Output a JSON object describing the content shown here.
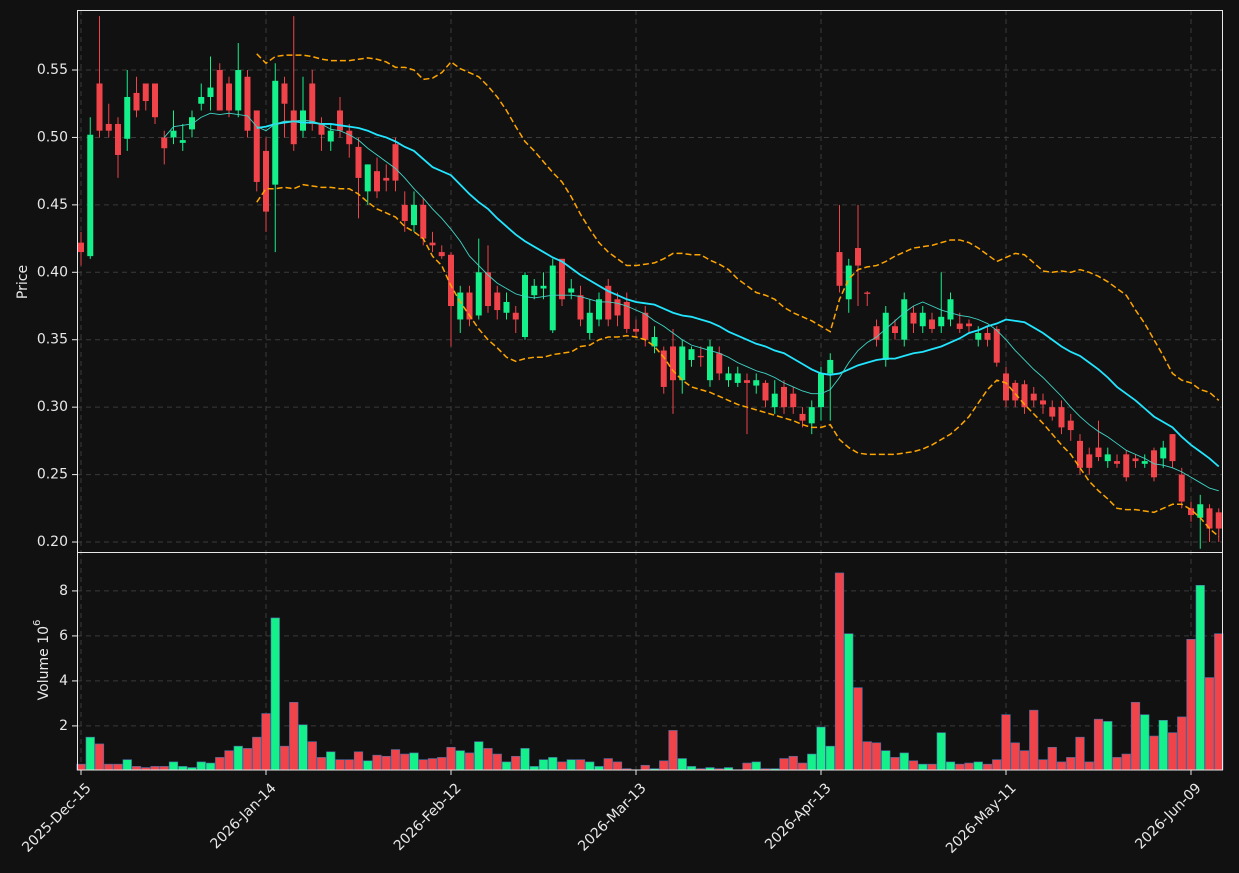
{
  "chart_data": {
    "type": "candlestick",
    "ylabel": "Price",
    "volume_ylabel": "Volume",
    "volume_scale_base": "10",
    "volume_scale_exponent": "6",
    "up_color": "#14f08a",
    "down_color": "#f0434a",
    "grid": true,
    "categories": [
      "2025-Dec-15",
      null,
      null,
      null,
      null,
      null,
      null,
      null,
      null,
      null,
      null,
      null,
      null,
      null,
      null,
      null,
      null,
      null,
      null,
      null,
      "2026-Jan-14",
      null,
      null,
      null,
      null,
      null,
      null,
      null,
      null,
      null,
      null,
      null,
      null,
      null,
      null,
      null,
      null,
      null,
      null,
      null,
      "2026-Feb-12",
      null,
      null,
      null,
      null,
      null,
      null,
      null,
      null,
      null,
      null,
      null,
      null,
      null,
      null,
      null,
      null,
      null,
      null,
      null,
      "2026-Mar-13",
      null,
      null,
      null,
      null,
      null,
      null,
      null,
      null,
      null,
      null,
      null,
      null,
      null,
      null,
      null,
      null,
      null,
      null,
      null,
      "2026-Apr-13",
      null,
      null,
      null,
      null,
      null,
      null,
      null,
      null,
      null,
      null,
      null,
      null,
      null,
      null,
      null,
      null,
      null,
      null,
      null,
      "2026-May-11",
      null,
      null,
      null,
      null,
      null,
      null,
      null,
      null,
      null,
      null,
      null,
      null,
      null,
      null,
      null,
      null,
      null,
      null,
      null,
      "2026-Jun-09",
      null,
      null,
      null
    ],
    "open": [
      0.422,
      0.412,
      0.54,
      0.51,
      0.51,
      0.499,
      0.533,
      0.54,
      0.54,
      0.5,
      0.5,
      0.496,
      0.506,
      0.525,
      0.53,
      0.55,
      0.54,
      0.52,
      0.545,
      0.52,
      0.49,
      0.465,
      0.54,
      0.52,
      0.505,
      0.54,
      0.51,
      0.497,
      0.52,
      0.505,
      0.493,
      0.46,
      0.475,
      0.47,
      0.495,
      0.45,
      0.435,
      0.45,
      0.422,
      0.415,
      0.413,
      0.365,
      0.385,
      0.368,
      0.4,
      0.385,
      0.37,
      0.37,
      0.352,
      0.383,
      0.388,
      0.357,
      0.41,
      0.385,
      0.383,
      0.355,
      0.365,
      0.39,
      0.38,
      0.378,
      0.358,
      0.37,
      0.345,
      0.342,
      0.345,
      0.32,
      0.335,
      0.338,
      0.32,
      0.34,
      0.32,
      0.318,
      0.32,
      0.316,
      0.318,
      0.3,
      0.315,
      0.31,
      0.295,
      0.288,
      0.3,
      0.325,
      0.415,
      0.38,
      0.418,
      0.385,
      0.36,
      0.335,
      0.36,
      0.35,
      0.37,
      0.36,
      0.365,
      0.36,
      0.365,
      0.362,
      0.362,
      0.35,
      0.355,
      0.358,
      0.325,
      0.318,
      0.317,
      0.31,
      0.305,
      0.3,
      0.3,
      0.29,
      0.275,
      0.265,
      0.27,
      0.26,
      0.26,
      0.265,
      0.262,
      0.258,
      0.268,
      0.262,
      0.28,
      0.25,
      0.225,
      0.218,
      0.225,
      0.222
    ],
    "high": [
      0.43,
      0.515,
      0.59,
      0.525,
      0.515,
      0.55,
      0.545,
      0.54,
      0.54,
      0.505,
      0.52,
      0.51,
      0.52,
      0.54,
      0.56,
      0.555,
      0.545,
      0.57,
      0.55,
      0.52,
      0.5,
      0.555,
      0.545,
      0.59,
      0.545,
      0.55,
      0.515,
      0.51,
      0.53,
      0.51,
      0.5,
      0.48,
      0.485,
      0.48,
      0.5,
      0.46,
      0.46,
      0.455,
      0.43,
      0.42,
      0.415,
      0.39,
      0.39,
      0.425,
      0.42,
      0.39,
      0.385,
      0.375,
      0.4,
      0.395,
      0.4,
      0.41,
      0.41,
      0.395,
      0.39,
      0.38,
      0.385,
      0.395,
      0.385,
      0.385,
      0.365,
      0.375,
      0.36,
      0.345,
      0.358,
      0.35,
      0.345,
      0.345,
      0.35,
      0.345,
      0.33,
      0.33,
      0.325,
      0.325,
      0.32,
      0.32,
      0.32,
      0.315,
      0.3,
      0.305,
      0.33,
      0.34,
      0.45,
      0.41,
      0.45,
      0.386,
      0.365,
      0.375,
      0.365,
      0.385,
      0.375,
      0.375,
      0.37,
      0.4,
      0.385,
      0.37,
      0.365,
      0.36,
      0.36,
      0.36,
      0.33,
      0.32,
      0.32,
      0.315,
      0.31,
      0.305,
      0.305,
      0.295,
      0.28,
      0.27,
      0.29,
      0.27,
      0.265,
      0.268,
      0.265,
      0.265,
      0.27,
      0.275,
      0.28,
      0.255,
      0.23,
      0.235,
      0.228,
      0.225
    ],
    "low": [
      0.405,
      0.41,
      0.5,
      0.5,
      0.47,
      0.49,
      0.515,
      0.52,
      0.51,
      0.48,
      0.495,
      0.49,
      0.5,
      0.52,
      0.52,
      0.52,
      0.515,
      0.515,
      0.5,
      0.46,
      0.43,
      0.415,
      0.5,
      0.49,
      0.5,
      0.505,
      0.49,
      0.49,
      0.5,
      0.485,
      0.44,
      0.45,
      0.455,
      0.46,
      0.46,
      0.43,
      0.43,
      0.42,
      0.415,
      0.41,
      0.345,
      0.355,
      0.36,
      0.365,
      0.37,
      0.365,
      0.365,
      0.355,
      0.35,
      0.38,
      0.38,
      0.355,
      0.375,
      0.38,
      0.36,
      0.35,
      0.36,
      0.36,
      0.36,
      0.355,
      0.352,
      0.345,
      0.34,
      0.31,
      0.295,
      0.31,
      0.33,
      0.33,
      0.315,
      0.32,
      0.315,
      0.315,
      0.28,
      0.31,
      0.3,
      0.295,
      0.295,
      0.295,
      0.285,
      0.28,
      0.29,
      0.29,
      0.385,
      0.37,
      0.375,
      0.375,
      0.345,
      0.33,
      0.35,
      0.345,
      0.355,
      0.355,
      0.355,
      0.355,
      0.36,
      0.355,
      0.355,
      0.345,
      0.345,
      0.33,
      0.3,
      0.3,
      0.295,
      0.3,
      0.295,
      0.29,
      0.28,
      0.275,
      0.25,
      0.25,
      0.26,
      0.255,
      0.255,
      0.245,
      0.255,
      0.255,
      0.245,
      0.255,
      0.255,
      0.225,
      0.215,
      0.195,
      0.2,
      0.2
    ],
    "close": [
      0.415,
      0.502,
      0.505,
      0.505,
      0.487,
      0.53,
      0.52,
      0.527,
      0.515,
      0.492,
      0.505,
      0.498,
      0.515,
      0.53,
      0.537,
      0.52,
      0.52,
      0.55,
      0.505,
      0.467,
      0.445,
      0.542,
      0.525,
      0.495,
      0.52,
      0.51,
      0.502,
      0.505,
      0.505,
      0.495,
      0.47,
      0.48,
      0.46,
      0.468,
      0.468,
      0.438,
      0.45,
      0.425,
      0.42,
      0.412,
      0.375,
      0.385,
      0.365,
      0.4,
      0.375,
      0.372,
      0.378,
      0.365,
      0.398,
      0.39,
      0.39,
      0.405,
      0.38,
      0.388,
      0.365,
      0.37,
      0.38,
      0.365,
      0.368,
      0.358,
      0.356,
      0.35,
      0.352,
      0.315,
      0.32,
      0.345,
      0.343,
      0.337,
      0.345,
      0.325,
      0.325,
      0.325,
      0.318,
      0.32,
      0.305,
      0.31,
      0.3,
      0.3,
      0.29,
      0.3,
      0.325,
      0.335,
      0.39,
      0.405,
      0.405,
      0.384,
      0.35,
      0.37,
      0.355,
      0.38,
      0.362,
      0.37,
      0.358,
      0.367,
      0.38,
      0.358,
      0.36,
      0.355,
      0.35,
      0.333,
      0.305,
      0.305,
      0.3,
      0.305,
      0.302,
      0.293,
      0.285,
      0.283,
      0.255,
      0.255,
      0.263,
      0.265,
      0.258,
      0.248,
      0.26,
      0.26,
      0.248,
      0.27,
      0.26,
      0.23,
      0.22,
      0.228,
      0.21,
      0.21
    ],
    "volume": [
      0.3,
      1.5,
      1.2,
      0.3,
      0.3,
      0.5,
      0.2,
      0.15,
      0.2,
      0.2,
      0.4,
      0.2,
      0.15,
      0.4,
      0.35,
      0.6,
      0.9,
      1.1,
      1.0,
      1.5,
      2.55,
      6.8,
      1.1,
      3.05,
      2.05,
      1.3,
      0.6,
      0.85,
      0.5,
      0.5,
      0.85,
      0.45,
      0.7,
      0.65,
      0.95,
      0.75,
      0.8,
      0.5,
      0.55,
      0.6,
      1.05,
      0.9,
      0.8,
      1.3,
      1.0,
      0.75,
      0.4,
      0.65,
      1.0,
      0.2,
      0.5,
      0.6,
      0.4,
      0.5,
      0.5,
      0.4,
      0.2,
      0.55,
      0.4,
      0.1,
      0.05,
      0.25,
      0.1,
      0.45,
      1.8,
      0.55,
      0.2,
      0.1,
      0.15,
      0.1,
      0.15,
      0.05,
      0.35,
      0.4,
      0.1,
      0.1,
      0.55,
      0.65,
      0.35,
      0.75,
      1.95,
      1.1,
      8.8,
      6.1,
      3.7,
      1.3,
      1.25,
      0.9,
      0.6,
      0.8,
      0.45,
      0.3,
      0.3,
      1.7,
      0.4,
      0.3,
      0.35,
      0.4,
      0.3,
      0.5,
      2.5,
      1.25,
      0.9,
      2.7,
      0.5,
      1.05,
      0.4,
      0.6,
      1.5,
      0.4,
      2.3,
      2.2,
      0.6,
      0.75,
      3.05,
      2.5,
      1.55,
      2.25,
      1.7,
      2.4,
      5.85,
      8.25,
      4.15,
      6.1
    ],
    "overlays": [
      {
        "color": "#22e5ff",
        "linestyle": "solid",
        "values": [
          null,
          null,
          null,
          null,
          null,
          null,
          null,
          null,
          null,
          null,
          null,
          null,
          null,
          null,
          null,
          null,
          null,
          null,
          null,
          0.507,
          0.508,
          0.51,
          0.511,
          0.512,
          0.511,
          0.511,
          0.51,
          0.51,
          0.509,
          0.508,
          0.507,
          0.505,
          0.502,
          0.5,
          0.497,
          0.493,
          0.49,
          0.484,
          0.478,
          0.475,
          0.472,
          0.465,
          0.458,
          0.452,
          0.447,
          0.44,
          0.434,
          0.428,
          0.423,
          0.419,
          0.415,
          0.411,
          0.408,
          0.403,
          0.398,
          0.394,
          0.39,
          0.386,
          0.383,
          0.38,
          0.378,
          0.377,
          0.376,
          0.373,
          0.37,
          0.368,
          0.367,
          0.365,
          0.363,
          0.36,
          0.356,
          0.353,
          0.35,
          0.347,
          0.345,
          0.342,
          0.34,
          0.336,
          0.332,
          0.328,
          0.325,
          0.324,
          0.325,
          0.328,
          0.331,
          0.333,
          0.335,
          0.336,
          0.336,
          0.338,
          0.34,
          0.341,
          0.343,
          0.345,
          0.348,
          0.351,
          0.355,
          0.357,
          0.36,
          0.362,
          0.365,
          0.364,
          0.363,
          0.359,
          0.355,
          0.35,
          0.345,
          0.341,
          0.338,
          0.333,
          0.328,
          0.322,
          0.315,
          0.31,
          0.305,
          0.299,
          0.293,
          0.289,
          0.285,
          0.278,
          0.272,
          0.267,
          0.262,
          0.256
        ]
      },
      {
        "color": "#3fd6c6",
        "linestyle": "solid",
        "values": [
          null,
          null,
          null,
          null,
          null,
          null,
          null,
          null,
          null,
          0.5,
          0.508,
          0.509,
          0.51,
          0.515,
          0.518,
          0.517,
          0.518,
          0.517,
          0.516,
          0.508,
          0.505,
          0.51,
          0.512,
          0.512,
          0.513,
          0.512,
          0.51,
          0.506,
          0.505,
          0.502,
          0.498,
          0.492,
          0.487,
          0.482,
          0.477,
          0.47,
          0.462,
          0.455,
          0.447,
          0.44,
          0.432,
          0.423,
          0.412,
          0.405,
          0.398,
          0.392,
          0.388,
          0.384,
          0.382,
          0.381,
          0.382,
          0.383,
          0.383,
          0.383,
          0.382,
          0.38,
          0.378,
          0.378,
          0.377,
          0.375,
          0.372,
          0.369,
          0.364,
          0.36,
          0.355,
          0.35,
          0.346,
          0.344,
          0.342,
          0.34,
          0.337,
          0.333,
          0.33,
          0.327,
          0.325,
          0.322,
          0.318,
          0.315,
          0.312,
          0.31,
          0.31,
          0.313,
          0.322,
          0.333,
          0.342,
          0.348,
          0.352,
          0.358,
          0.364,
          0.37,
          0.375,
          0.378,
          0.375,
          0.372,
          0.37,
          0.368,
          0.367,
          0.365,
          0.362,
          0.357,
          0.35,
          0.342,
          0.335,
          0.328,
          0.322,
          0.315,
          0.308,
          0.3,
          0.293,
          0.287,
          0.282,
          0.278,
          0.273,
          0.268,
          0.265,
          0.262,
          0.258,
          0.257,
          0.255,
          0.252,
          0.248,
          0.244,
          0.24,
          0.238
        ]
      },
      {
        "color": "#ffa500",
        "linestyle": "dashed",
        "values": [
          null,
          null,
          null,
          null,
          null,
          null,
          null,
          null,
          null,
          null,
          null,
          null,
          null,
          null,
          null,
          null,
          null,
          null,
          null,
          0.562,
          0.555,
          0.56,
          0.561,
          0.561,
          0.561,
          0.56,
          0.558,
          0.557,
          0.557,
          0.557,
          0.558,
          0.559,
          0.558,
          0.556,
          0.552,
          0.552,
          0.55,
          0.543,
          0.544,
          0.548,
          0.556,
          0.551,
          0.548,
          0.545,
          0.538,
          0.53,
          0.52,
          0.508,
          0.497,
          0.49,
          0.482,
          0.474,
          0.467,
          0.456,
          0.443,
          0.432,
          0.422,
          0.415,
          0.41,
          0.405,
          0.405,
          0.406,
          0.407,
          0.41,
          0.414,
          0.414,
          0.413,
          0.413,
          0.409,
          0.406,
          0.402,
          0.395,
          0.39,
          0.385,
          0.383,
          0.38,
          0.374,
          0.37,
          0.367,
          0.364,
          0.36,
          0.356,
          0.38,
          0.395,
          0.402,
          0.404,
          0.405,
          0.408,
          0.412,
          0.415,
          0.418,
          0.419,
          0.42,
          0.422,
          0.424,
          0.424,
          0.422,
          0.418,
          0.413,
          0.408,
          0.411,
          0.414,
          0.413,
          0.407,
          0.401,
          0.4,
          0.401,
          0.4,
          0.402,
          0.4,
          0.397,
          0.393,
          0.388,
          0.383,
          0.372,
          0.362,
          0.35,
          0.338,
          0.325,
          0.32,
          0.318,
          0.313,
          0.311,
          0.305
        ]
      },
      {
        "color": "#ffa500",
        "linestyle": "dashed",
        "values": [
          null,
          null,
          null,
          null,
          null,
          null,
          null,
          null,
          null,
          null,
          null,
          null,
          null,
          null,
          null,
          null,
          null,
          null,
          null,
          0.452,
          0.462,
          0.462,
          0.463,
          0.462,
          0.465,
          0.464,
          0.463,
          0.463,
          0.462,
          0.462,
          0.458,
          0.452,
          0.447,
          0.444,
          0.441,
          0.434,
          0.43,
          0.425,
          0.412,
          0.405,
          0.39,
          0.378,
          0.368,
          0.358,
          0.35,
          0.344,
          0.337,
          0.334,
          0.336,
          0.337,
          0.337,
          0.339,
          0.34,
          0.341,
          0.345,
          0.346,
          0.35,
          0.352,
          0.352,
          0.353,
          0.352,
          0.35,
          0.345,
          0.337,
          0.327,
          0.32,
          0.315,
          0.313,
          0.311,
          0.308,
          0.305,
          0.302,
          0.3,
          0.298,
          0.296,
          0.294,
          0.292,
          0.29,
          0.287,
          0.285,
          0.285,
          0.287,
          0.276,
          0.27,
          0.266,
          0.265,
          0.265,
          0.265,
          0.265,
          0.266,
          0.267,
          0.269,
          0.272,
          0.276,
          0.28,
          0.286,
          0.293,
          0.303,
          0.313,
          0.32,
          0.318,
          0.31,
          0.302,
          0.295,
          0.288,
          0.28,
          0.272,
          0.265,
          0.255,
          0.245,
          0.238,
          0.232,
          0.225,
          0.224,
          0.224,
          0.223,
          0.222,
          0.225,
          0.228,
          0.228,
          0.224,
          0.218,
          0.21,
          0.204
        ]
      }
    ],
    "ylim": [
      0.1926,
      0.5945
    ],
    "yticks": [
      {
        "value": 0.2,
        "label": "0.20"
      },
      0.25,
      {
        "value": 0.3,
        "label": "0.30"
      },
      0.35,
      {
        "value": 0.4,
        "label": "0.40"
      },
      0.45,
      {
        "value": 0.5,
        "label": "0.50"
      },
      0.55
    ],
    "volume_ylim": [
      0.04,
      9.73
    ],
    "volume_yticks": [
      2,
      4,
      6,
      8
    ]
  }
}
